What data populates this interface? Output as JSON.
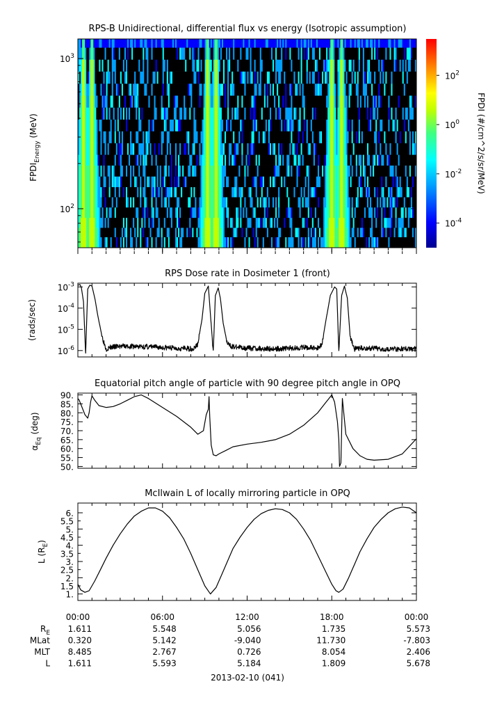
{
  "chart_data": [
    {
      "type": "heatmap",
      "title": "RPS-B  Unidirectional, differential flux vs energy (Isotropic assumption)",
      "ylabel": "FPDI",
      "ylabel_sub": "Energy",
      "ylabel_unit": "(MeV)",
      "yscale": "log",
      "ylim": [
        55,
        1350
      ],
      "yticks": [
        {
          "base": "10",
          "exp": "3",
          "value": 1000
        },
        {
          "base": "10",
          "exp": "2",
          "value": 100
        }
      ],
      "xlim_hours": [
        0,
        24
      ],
      "energy_channels_mev": [
        60,
        70,
        80,
        95,
        110,
        130,
        150,
        180,
        210,
        250,
        300,
        360,
        430,
        520,
        620,
        750,
        900,
        1080,
        1300
      ],
      "belt_passes_hours": [
        0.4,
        1.0,
        9.2,
        9.8,
        18.0,
        18.7
      ],
      "colorbar": {
        "label": "FPDI (#/cm^2/s/sr/MeV)",
        "scale": "log",
        "range": [
          1e-05,
          3000
        ],
        "ticks": [
          {
            "base": "10",
            "exp": "2",
            "value": 100
          },
          {
            "base": "10",
            "exp": "0",
            "value": 1
          },
          {
            "base": "10",
            "exp": "-2",
            "value": 0.01
          },
          {
            "base": "10",
            "exp": "-4",
            "value": 0.0001
          }
        ],
        "colors": [
          "#00008f",
          "#0000ff",
          "#00a0ff",
          "#00ffff",
          "#40ff80",
          "#c0ff00",
          "#ffff00",
          "#ff8000",
          "#ff0000"
        ]
      }
    },
    {
      "type": "line",
      "title": "RPS  Dose rate in Dosimeter 1 (front)",
      "ylabel": "(rads/sec)",
      "yscale": "log",
      "ylim": [
        5e-07,
        0.0015
      ],
      "yticks": [
        {
          "base": "10",
          "exp": "-3",
          "value": 0.001
        },
        {
          "base": "10",
          "exp": "-4",
          "value": 0.0001
        },
        {
          "base": "10",
          "exp": "-5",
          "value": 1e-05
        },
        {
          "base": "10",
          "exp": "-6",
          "value": 1e-06
        }
      ],
      "series": [
        {
          "x": [
            0,
            0.15,
            0.25,
            0.4,
            0.55,
            0.7,
            0.85,
            1.0,
            1.2,
            1.4,
            1.7,
            2.0,
            2.3,
            3.0,
            5.0,
            7.0,
            8.2,
            8.5,
            8.8,
            9.0,
            9.25,
            9.4,
            9.6,
            9.75,
            9.95,
            10.1,
            10.3,
            10.6,
            11.0,
            12.0,
            14.0,
            16.0,
            17.0,
            17.3,
            17.6,
            17.9,
            18.2,
            18.35,
            18.5,
            18.7,
            18.9,
            19.1,
            19.3,
            19.6,
            20.0,
            22.0,
            24.0
          ],
          "y": [
            0.0012,
            0.0013,
            0.0009,
            0.0002,
            8e-07,
            0.0008,
            0.0012,
            0.0011,
            0.0003,
            5e-05,
            5e-06,
            1.2e-06,
            1.4e-06,
            1.6e-06,
            1.5e-06,
            1.3e-06,
            1.2e-06,
            2e-06,
            3e-05,
            0.0005,
            0.0011,
            5e-05,
            8e-07,
            0.0004,
            0.0009,
            0.0003,
            2e-05,
            2e-06,
            1.5e-06,
            1.3e-06,
            1.2e-06,
            1.4e-06,
            1.3e-06,
            2e-06,
            3e-05,
            0.0004,
            0.001,
            0.0008,
            8e-07,
            0.0004,
            0.0011,
            0.0003,
            5e-06,
            1.2e-06,
            1.3e-06,
            1.2e-06,
            1.2e-06
          ]
        }
      ]
    },
    {
      "type": "line",
      "title": "Equatorial pitch angle of particle with 90 degree pitch angle in OPQ",
      "ylabel": "α",
      "ylabel_sub": "Eq",
      "ylabel_unit": "(deg)",
      "ylim": [
        49,
        91
      ],
      "yticks": [
        "50.",
        "55.",
        "60.",
        "65.",
        "70.",
        "75.",
        "80.",
        "85.",
        "90."
      ],
      "series": [
        {
          "x": [
            0,
            0.1,
            0.3,
            0.5,
            0.7,
            0.8,
            0.9,
            1.0,
            1.2,
            1.5,
            2.0,
            2.5,
            3.0,
            3.5,
            4.0,
            4.5,
            5.0,
            6.0,
            7.0,
            8.0,
            8.5,
            8.9,
            9.1,
            9.25,
            9.3,
            9.35,
            9.45,
            9.6,
            9.8,
            10.0,
            10.5,
            11.0,
            12.0,
            13.0,
            14.0,
            15.0,
            16.0,
            17.0,
            17.5,
            18.0,
            18.2,
            18.4,
            18.5,
            18.55,
            18.65,
            18.75,
            19.0,
            19.5,
            20.0,
            20.5,
            21.0,
            22.0,
            23.0,
            24.0
          ],
          "y": [
            88,
            87,
            83,
            79,
            77,
            80,
            86,
            89.5,
            87,
            84,
            83,
            83.5,
            85,
            87,
            89,
            90,
            88,
            83,
            78,
            72,
            68,
            70,
            79,
            82,
            89,
            78,
            62,
            56.5,
            56,
            57,
            59,
            61,
            62.5,
            63.5,
            65,
            68,
            73,
            80,
            85,
            90,
            86,
            75,
            65,
            50,
            52,
            88,
            68,
            60,
            56,
            54,
            53.5,
            54,
            57,
            65.5
          ]
        }
      ]
    },
    {
      "type": "line",
      "title": "McIlwain L of locally mirroring particle in OPQ",
      "ylabel": "L (R",
      "ylabel_sub": "E",
      "ylabel_unit": ")",
      "ylim": [
        0.6,
        6.6
      ],
      "yticks": [
        "1.",
        "1.5",
        "2.",
        "2.5",
        "3.",
        "3.5",
        "4.",
        "4.5",
        "5.",
        "5.5",
        "6."
      ],
      "series": [
        {
          "x": [
            0,
            0.2,
            0.5,
            0.8,
            1.2,
            1.6,
            2.0,
            2.5,
            3.0,
            3.5,
            4.0,
            4.5,
            5.0,
            5.5,
            6.0,
            6.5,
            7.0,
            7.5,
            8.0,
            8.5,
            9.0,
            9.4,
            9.8,
            10.2,
            10.6,
            11.0,
            11.5,
            12.0,
            12.5,
            13.0,
            13.5,
            14.0,
            14.5,
            15.0,
            15.5,
            16.0,
            16.5,
            17.0,
            17.5,
            18.0,
            18.3,
            18.5,
            18.8,
            19.2,
            19.6,
            20.0,
            20.5,
            21.0,
            21.5,
            22.0,
            22.5,
            23.0,
            23.5,
            24.0
          ],
          "y": [
            1.6,
            1.25,
            1.1,
            1.2,
            1.8,
            2.5,
            3.2,
            4.0,
            4.7,
            5.3,
            5.8,
            6.1,
            6.3,
            6.3,
            6.1,
            5.7,
            5.1,
            4.4,
            3.5,
            2.5,
            1.5,
            1.0,
            1.4,
            2.2,
            3.0,
            3.8,
            4.5,
            5.1,
            5.6,
            5.95,
            6.15,
            6.25,
            6.2,
            6.0,
            5.6,
            5.0,
            4.3,
            3.4,
            2.5,
            1.6,
            1.2,
            1.1,
            1.3,
            2.0,
            2.8,
            3.6,
            4.4,
            5.1,
            5.6,
            6.0,
            6.25,
            6.35,
            6.3,
            6.0
          ]
        }
      ]
    }
  ],
  "time_axis": {
    "tick_labels": [
      "00:00",
      "06:00",
      "12:00",
      "18:00",
      "00:00"
    ],
    "date_label": "2013-02-10 (041)"
  },
  "ephemeris": {
    "rows": [
      {
        "label": "R",
        "label_sub": "E",
        "values": [
          "1.611",
          "5.548",
          "5.056",
          "1.735",
          "5.573"
        ]
      },
      {
        "label": "MLat",
        "label_sub": "",
        "values": [
          "0.320",
          "5.142",
          "-9.040",
          "11.730",
          "-7.803"
        ]
      },
      {
        "label": "MLT",
        "label_sub": "",
        "values": [
          "8.485",
          "2.767",
          "0.726",
          "8.054",
          "2.406"
        ]
      },
      {
        "label": "L",
        "label_sub": "",
        "values": [
          "1.611",
          "5.593",
          "5.184",
          "1.809",
          "5.678"
        ]
      }
    ]
  }
}
